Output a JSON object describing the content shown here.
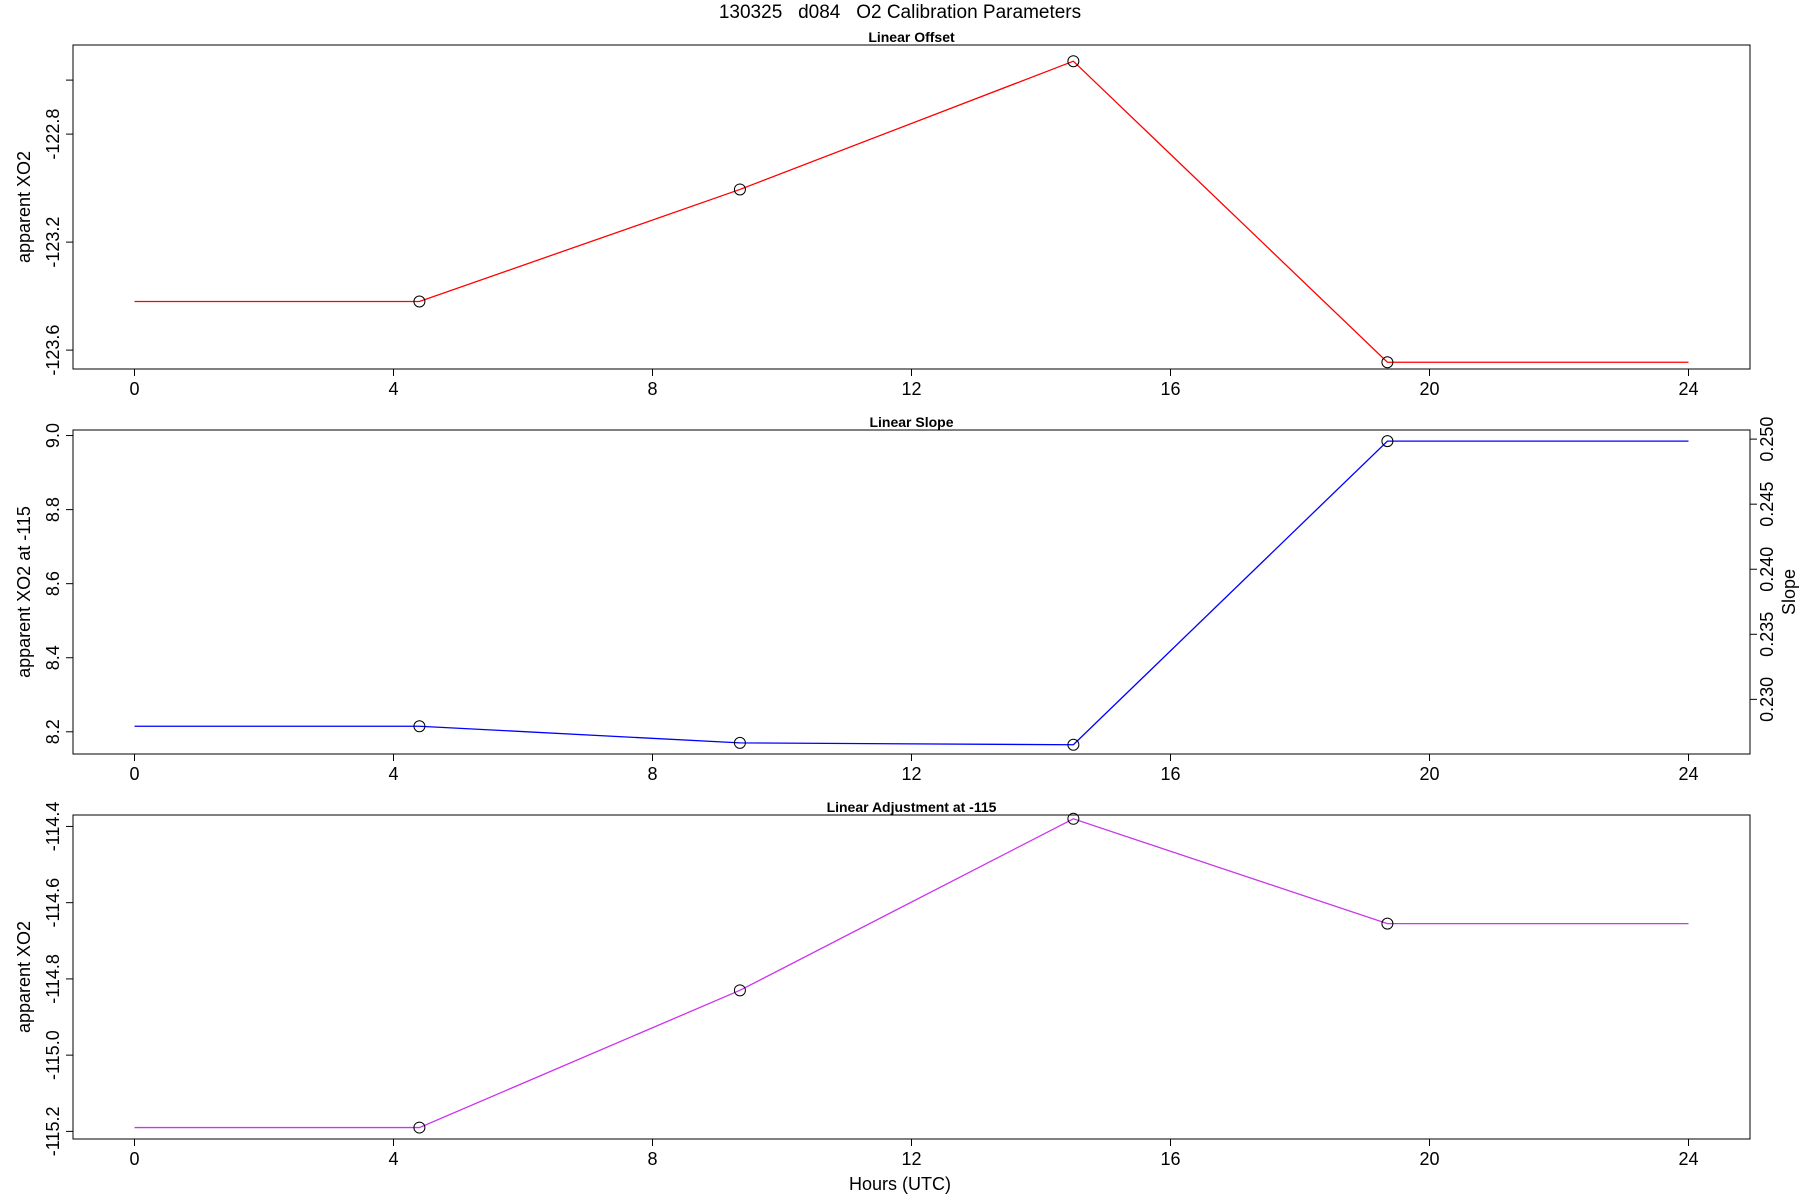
{
  "figure": {
    "title": "130325   d084   O2 Calibration Parameters",
    "xlabel": "Hours (UTC)"
  },
  "chart_data": [
    {
      "type": "line",
      "title": "Linear Offset",
      "xlabel": "",
      "ylabel": "apparent XO2",
      "x_ticks": [
        0,
        4,
        8,
        12,
        16,
        20,
        24
      ],
      "y_ticks": [
        -123.6,
        -123.2,
        -122.8
      ],
      "y_tick_labels": [
        "-123.6",
        "-123.2",
        "-122.8"
      ],
      "extra_y_ticks": [
        -122.6
      ],
      "xlim": [
        -0.95,
        24.95
      ],
      "ylim": [
        -123.67,
        -122.47
      ],
      "color": "#ff0000",
      "series": [
        {
          "x": [
            0,
            4.4,
            9.35,
            14.5,
            19.35,
            24
          ],
          "y": [
            -123.42,
            -123.42,
            -123.005,
            -122.53,
            -123.645,
            -123.645
          ],
          "markers": [
            false,
            true,
            true,
            true,
            true,
            false
          ]
        }
      ]
    },
    {
      "type": "line",
      "title": "Linear Slope",
      "xlabel": "",
      "ylabel": "apparent XO2 at -115",
      "ylabel_right": "Slope",
      "x_ticks": [
        0,
        4,
        8,
        12,
        16,
        20,
        24
      ],
      "y_ticks": [
        8.2,
        8.4,
        8.6,
        8.8,
        9.0
      ],
      "y_tick_labels": [
        "8.2",
        "8.4",
        "8.6",
        "8.8",
        "9.0"
      ],
      "y_right_ticks": [
        0.23,
        0.235,
        0.24,
        0.245,
        0.25
      ],
      "y_right_tick_labels": [
        "0.230",
        "0.235",
        "0.240",
        "0.245",
        "0.250"
      ],
      "y_right_range": [
        0.2258,
        0.2507
      ],
      "xlim": [
        -0.95,
        24.95
      ],
      "ylim": [
        8.14,
        9.015
      ],
      "color": "#0000ff",
      "series": [
        {
          "x": [
            0,
            4.4,
            9.35,
            14.5,
            19.35,
            24
          ],
          "y": [
            8.215,
            8.215,
            8.17,
            8.165,
            8.985,
            8.985
          ],
          "markers": [
            false,
            true,
            true,
            true,
            true,
            false
          ]
        }
      ]
    },
    {
      "type": "line",
      "title": "Linear Adjustment at -115",
      "xlabel": "Hours (UTC)",
      "ylabel": "apparent XO2",
      "x_ticks": [
        0,
        4,
        8,
        12,
        16,
        20,
        24
      ],
      "y_ticks": [
        -115.2,
        -115.0,
        -114.8,
        -114.6,
        -114.4
      ],
      "y_tick_labels": [
        "-115.2",
        "-115.0",
        "-114.8",
        "-114.6",
        "-114.4"
      ],
      "xlim": [
        -0.95,
        24.95
      ],
      "ylim": [
        -115.22,
        -114.37
      ],
      "color": "#cc33ee",
      "series": [
        {
          "x": [
            0,
            4.4,
            9.35,
            14.5,
            19.35,
            24
          ],
          "y": [
            -115.19,
            -115.19,
            -114.83,
            -114.38,
            -114.655,
            -114.655
          ],
          "markers": [
            false,
            true,
            true,
            true,
            true,
            false
          ]
        }
      ]
    }
  ]
}
